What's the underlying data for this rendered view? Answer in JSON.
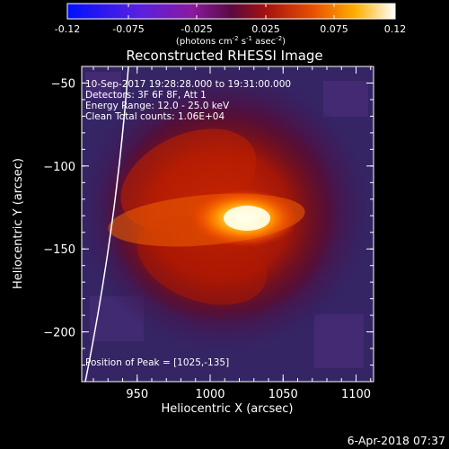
{
  "colorbar": {
    "ticks": [
      "-0.12",
      "-0.075",
      "-0.025",
      "0.025",
      "0.075",
      "0.12"
    ],
    "units_main": "(photons cm",
    "units_exp1": "-2",
    "units_mid1": " s",
    "units_exp2": "-1",
    "units_mid2": " asec",
    "units_exp3": "-2",
    "units_end": ")"
  },
  "title": "Reconstructed RHESSI Image",
  "info_lines": [
    "10-Sep-2017 19:28:28.000 to 19:31:00.000",
    "Detectors: 3F 6F 8F, Att 1",
    "Energy Range: 12.0 - 25.0 keV",
    "Clean     Total counts: 1.06E+04"
  ],
  "peak_text": "Position of Peak = [1025,-135]",
  "x_axis": {
    "label": "Heliocentric X (arcsec)",
    "ticks": [
      "950",
      "1000",
      "1050",
      "1100"
    ],
    "tick_values": [
      950,
      1000,
      1050,
      1100
    ],
    "range": [
      912,
      1112
    ]
  },
  "y_axis": {
    "label": "Heliocentric Y (arcsec)",
    "ticks": [
      "−50",
      "−100",
      "−150",
      "−200"
    ],
    "tick_values": [
      -50,
      -100,
      -150,
      -200
    ],
    "range": [
      -230,
      -40
    ]
  },
  "peak": {
    "x": 1025,
    "y": -135
  },
  "timestamp": "6-Apr-2018 07:37"
}
